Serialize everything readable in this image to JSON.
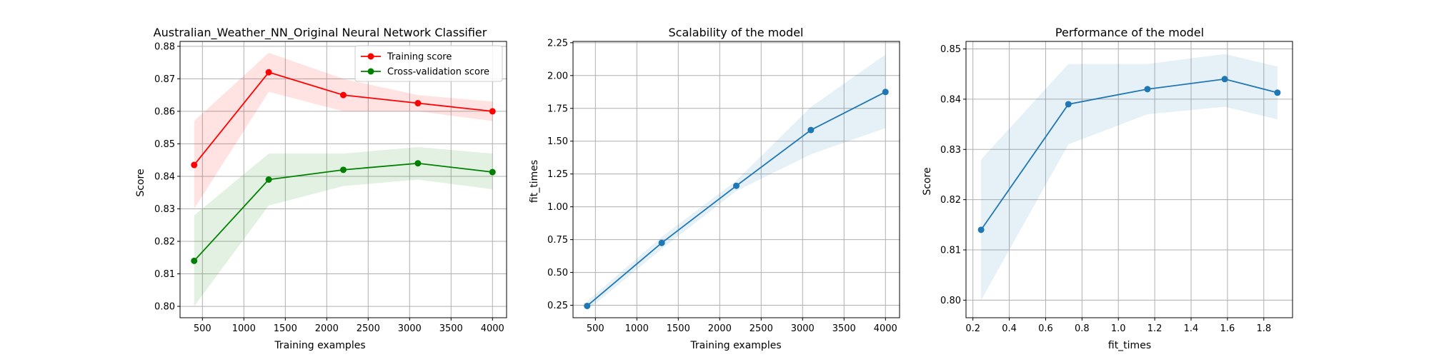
{
  "chart_data": [
    {
      "type": "line",
      "title": "Australian_Weather_NN_Original Neural Network Classifier",
      "xlabel": "Training examples",
      "ylabel": "Score",
      "xlim": [
        230,
        4170
      ],
      "ylim": [
        0.7965,
        0.8815
      ],
      "xticks": [
        500,
        1000,
        1500,
        2000,
        2500,
        3000,
        3500,
        4000
      ],
      "yticks": [
        0.8,
        0.81,
        0.82,
        0.83,
        0.84,
        0.85,
        0.86,
        0.87,
        0.88
      ],
      "ytick_decimals": 2,
      "grid": true,
      "legend": "top-right",
      "series": [
        {
          "name": "Training score",
          "color": "#ff0000",
          "x": [
            400,
            1300,
            2200,
            3100,
            4000
          ],
          "values": [
            0.8435,
            0.872,
            0.865,
            0.8625,
            0.86
          ],
          "band_low": [
            0.83,
            0.866,
            0.86,
            0.86,
            0.857
          ],
          "band_high": [
            0.857,
            0.878,
            0.87,
            0.865,
            0.863
          ]
        },
        {
          "name": "Cross-validation score",
          "color": "#008000",
          "x": [
            400,
            1300,
            2200,
            3100,
            4000
          ],
          "values": [
            0.814,
            0.839,
            0.842,
            0.844,
            0.8413
          ],
          "band_low": [
            0.8,
            0.831,
            0.837,
            0.839,
            0.836
          ],
          "band_high": [
            0.828,
            0.847,
            0.847,
            0.849,
            0.847
          ]
        }
      ]
    },
    {
      "type": "line",
      "title": "Scalability of the model",
      "xlabel": "Training examples",
      "ylabel": "fit_times",
      "xlim": [
        230,
        4170
      ],
      "ylim": [
        0.155,
        2.26
      ],
      "xticks": [
        500,
        1000,
        1500,
        2000,
        2500,
        3000,
        3500,
        4000
      ],
      "yticks": [
        0.25,
        0.5,
        0.75,
        1.0,
        1.25,
        1.5,
        1.75,
        2.0,
        2.25
      ],
      "ytick_decimals": 2,
      "grid": true,
      "series": [
        {
          "color": "#1f77b4",
          "x": [
            400,
            1300,
            2200,
            3100,
            4000
          ],
          "values": [
            0.245,
            0.725,
            1.16,
            1.585,
            1.875
          ],
          "band_low": [
            0.21,
            0.68,
            1.12,
            1.4,
            1.6
          ],
          "band_high": [
            0.28,
            0.77,
            1.2,
            1.76,
            2.16
          ]
        }
      ]
    },
    {
      "type": "line",
      "title": "Performance of the model",
      "xlabel": "fit_times",
      "ylabel": "Score",
      "xlim": [
        0.162,
        1.958
      ],
      "ylim": [
        0.7965,
        0.8515
      ],
      "xticks": [
        0.2,
        0.4,
        0.6,
        0.8,
        1.0,
        1.2,
        1.4,
        1.6,
        1.8
      ],
      "yticks": [
        0.8,
        0.81,
        0.82,
        0.83,
        0.84,
        0.85
      ],
      "xtick_decimals": 1,
      "ytick_decimals": 2,
      "grid": true,
      "series": [
        {
          "color": "#1f77b4",
          "x": [
            0.245,
            0.725,
            1.16,
            1.585,
            1.875
          ],
          "values": [
            0.814,
            0.839,
            0.842,
            0.844,
            0.8413
          ],
          "band_low": [
            0.8,
            0.831,
            0.837,
            0.8385,
            0.836
          ],
          "band_high": [
            0.828,
            0.847,
            0.847,
            0.849,
            0.8465
          ]
        }
      ]
    }
  ]
}
